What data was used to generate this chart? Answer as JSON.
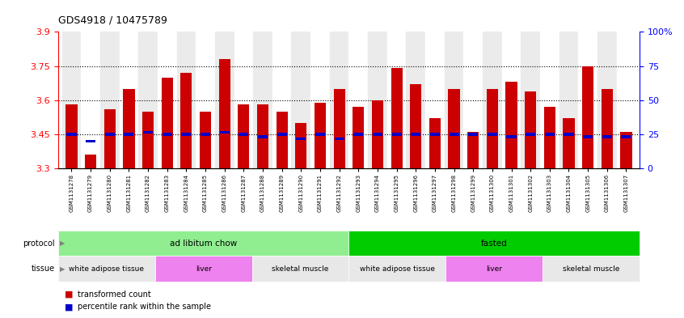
{
  "title": "GDS4918 / 10475789",
  "samples": [
    "GSM1131278",
    "GSM1131279",
    "GSM1131280",
    "GSM1131281",
    "GSM1131282",
    "GSM1131283",
    "GSM1131284",
    "GSM1131285",
    "GSM1131286",
    "GSM1131287",
    "GSM1131288",
    "GSM1131289",
    "GSM1131290",
    "GSM1131291",
    "GSM1131292",
    "GSM1131293",
    "GSM1131294",
    "GSM1131295",
    "GSM1131296",
    "GSM1131297",
    "GSM1131298",
    "GSM1131299",
    "GSM1131300",
    "GSM1131301",
    "GSM1131302",
    "GSM1131303",
    "GSM1131304",
    "GSM1131305",
    "GSM1131306",
    "GSM1131307"
  ],
  "red_values": [
    3.58,
    3.36,
    3.56,
    3.65,
    3.55,
    3.7,
    3.72,
    3.55,
    3.78,
    3.58,
    3.58,
    3.55,
    3.5,
    3.59,
    3.65,
    3.57,
    3.6,
    3.74,
    3.67,
    3.52,
    3.65,
    3.46,
    3.65,
    3.68,
    3.64,
    3.57,
    3.52,
    3.75,
    3.65,
    3.46
  ],
  "blue_values": [
    3.45,
    3.42,
    3.45,
    3.45,
    3.46,
    3.45,
    3.45,
    3.45,
    3.46,
    3.45,
    3.44,
    3.45,
    3.43,
    3.45,
    3.43,
    3.45,
    3.45,
    3.45,
    3.45,
    3.45,
    3.45,
    3.45,
    3.45,
    3.44,
    3.45,
    3.45,
    3.45,
    3.44,
    3.44,
    3.44
  ],
  "y_min": 3.3,
  "y_max": 3.9,
  "y_ticks_red": [
    3.3,
    3.45,
    3.6,
    3.75,
    3.9
  ],
  "y_ticks_blue": [
    0,
    25,
    50,
    75,
    100
  ],
  "dotted_lines_red": [
    3.45,
    3.6,
    3.75
  ],
  "protocol_groups": [
    {
      "label": "ad libitum chow",
      "start": 0,
      "end": 14,
      "color": "#90ee90"
    },
    {
      "label": "fasted",
      "start": 15,
      "end": 29,
      "color": "#00cc00"
    }
  ],
  "tissue_groups": [
    {
      "label": "white adipose tissue",
      "start": 0,
      "end": 4,
      "color": "#e8e8e8"
    },
    {
      "label": "liver",
      "start": 5,
      "end": 9,
      "color": "#ee82ee"
    },
    {
      "label": "skeletal muscle",
      "start": 10,
      "end": 14,
      "color": "#e8e8e8"
    },
    {
      "label": "white adipose tissue",
      "start": 15,
      "end": 19,
      "color": "#e8e8e8"
    },
    {
      "label": "liver",
      "start": 20,
      "end": 24,
      "color": "#ee82ee"
    },
    {
      "label": "skeletal muscle",
      "start": 25,
      "end": 29,
      "color": "#e8e8e8"
    }
  ],
  "bar_color": "#cc0000",
  "blue_color": "#0000cc",
  "bar_width": 0.6,
  "col_bg_even": "#ebebeb",
  "col_bg_odd": "#ffffff"
}
